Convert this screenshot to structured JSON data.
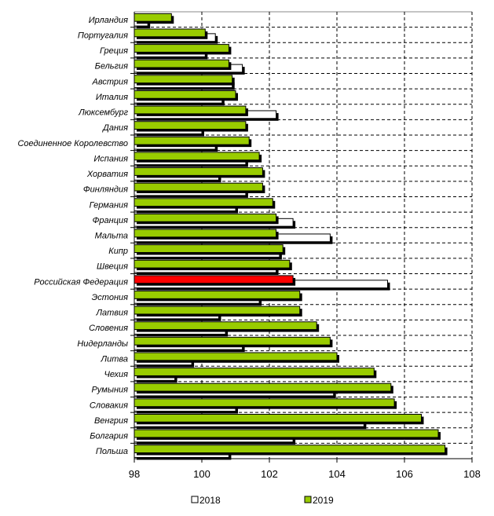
{
  "chart_data": {
    "type": "bar",
    "orientation": "horizontal",
    "title": "",
    "xlabel": "",
    "ylabel": "",
    "xlim": [
      98,
      108
    ],
    "xticks": [
      "98",
      "100",
      "102",
      "104",
      "106",
      "108"
    ],
    "grid": true,
    "legend_position": "bottom",
    "categories": [
      "Ирландия",
      "Португалия",
      "Греция",
      "Бельгия",
      "Австрия",
      "Италия",
      "Люксембург",
      "Дания",
      "Соединенное Королевство",
      "Испания",
      "Хорватия",
      "Финляндия",
      "Германия",
      "Франция",
      "Мальта",
      "Кипр",
      "Швеция",
      "Российская Федерация",
      "Эстония",
      "Латвия",
      "Словения",
      "Нидерланды",
      "Литва",
      "Чехия",
      "Румыния",
      "Словакия",
      "Венгрия",
      "Болгария",
      "Польша"
    ],
    "highlight_category": "Российская Федерация",
    "series": [
      {
        "name": "2018",
        "color": "#ffffff",
        "values": [
          98.4,
          100.4,
          100.1,
          101.2,
          100.9,
          100.6,
          102.2,
          100.0,
          100.4,
          101.3,
          100.5,
          101.3,
          101.0,
          102.7,
          103.8,
          102.3,
          102.2,
          105.5,
          101.7,
          100.5,
          100.7,
          101.2,
          99.7,
          99.2,
          103.9,
          101.0,
          104.8,
          102.7,
          100.8
        ]
      },
      {
        "name": "2019",
        "color": "#99cc00",
        "highlight_color": "#ff0000",
        "values": [
          99.1,
          100.1,
          100.8,
          100.8,
          100.9,
          101.0,
          101.3,
          101.3,
          101.4,
          101.7,
          101.8,
          101.8,
          102.1,
          102.2,
          102.2,
          102.4,
          102.6,
          102.7,
          102.9,
          102.9,
          103.4,
          103.8,
          104.0,
          105.1,
          105.6,
          105.7,
          106.5,
          107.0,
          107.2
        ]
      }
    ]
  }
}
